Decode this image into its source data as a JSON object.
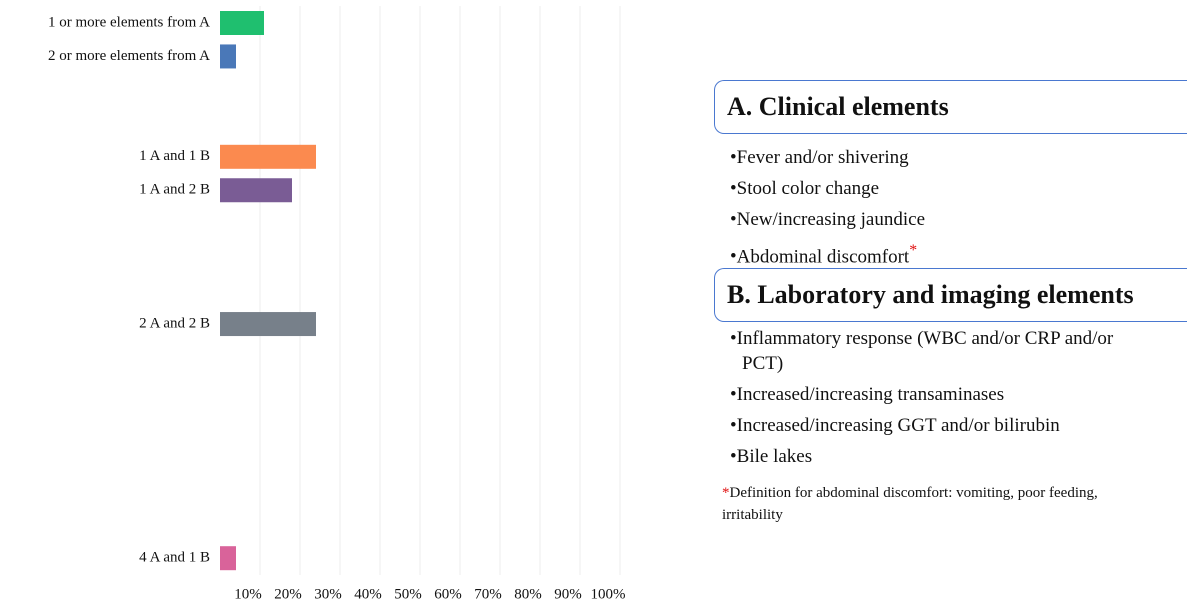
{
  "chart_data": {
    "type": "bar",
    "orientation": "horizontal",
    "categories": [
      "1 or more elements from A",
      "2 or more elements from A",
      null,
      null,
      "1 A and 1 B",
      "1 A and 2 B",
      null,
      null,
      null,
      "2 A and 2 B",
      null,
      null,
      null,
      null,
      null,
      null,
      "4 A and 1 B"
    ],
    "values": [
      11,
      4,
      null,
      null,
      24,
      18,
      null,
      null,
      null,
      24,
      null,
      null,
      null,
      null,
      null,
      null,
      4
    ],
    "colors": [
      "#1fbf6f",
      "#4a78b8",
      null,
      null,
      "#fb8a4f",
      "#7a5c95",
      null,
      null,
      null,
      "#77808a",
      null,
      null,
      null,
      null,
      null,
      null,
      "#d9639a"
    ],
    "xlim": [
      0,
      100
    ],
    "xticks": [
      {
        "value": 10,
        "label": "10%"
      },
      {
        "value": 20,
        "label": "20%"
      },
      {
        "value": 30,
        "label": "30%"
      },
      {
        "value": 40,
        "label": "40%"
      },
      {
        "value": 50,
        "label": "50%"
      },
      {
        "value": 60,
        "label": "60%"
      },
      {
        "value": 70,
        "label": "70%"
      },
      {
        "value": 80,
        "label": "80%"
      },
      {
        "value": 90,
        "label": "90%"
      },
      {
        "value": 100,
        "label": "100%"
      }
    ],
    "grid": true
  },
  "panel": {
    "sections": [
      {
        "heading": "A. Clinical elements",
        "items": [
          "Fever and/or shivering",
          "Stool color change",
          "New/increasing jaundice",
          "Abdominal discomfort"
        ]
      },
      {
        "heading": "B. Laboratory and imaging elements",
        "items": [
          "Inflammatory response (WBC and/or CRP and/or PCT)",
          "Increased/increasing transaminases",
          "Increased/increasing GGT and/or bilirubin",
          "Bile lakes"
        ]
      }
    ],
    "marker": "*",
    "footnote": "Definition for abdominal discomfort: vomiting, poor feeding, irritability"
  }
}
